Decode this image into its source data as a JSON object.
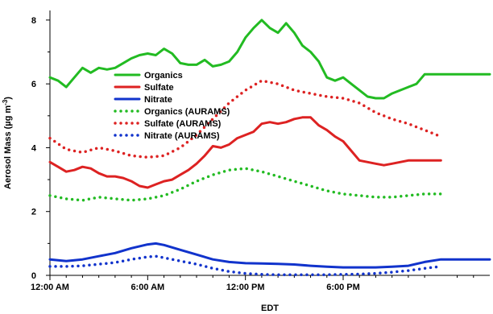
{
  "chart_data": {
    "type": "line",
    "xlabel": "EDT",
    "ylabel": "Aerosol Mass (µg m⁻³)",
    "ylabel_parts": {
      "main": "Aerosol Mass (µg m",
      "sup": "-3",
      "close": ")"
    },
    "xlim": [
      0,
      27
    ],
    "ylim": [
      0,
      8.3
    ],
    "x_ticks": [
      {
        "value": 0,
        "label": "12:00 AM"
      },
      {
        "value": 6,
        "label": "6:00 AM"
      },
      {
        "value": 12,
        "label": "12:00 PM"
      },
      {
        "value": 18,
        "label": "6:00 PM"
      }
    ],
    "y_ticks": [
      {
        "value": 0,
        "label": "0"
      },
      {
        "value": 2,
        "label": "2"
      },
      {
        "value": 4,
        "label": "4"
      },
      {
        "value": 6,
        "label": "6"
      },
      {
        "value": 8,
        "label": "8"
      }
    ],
    "legend_position": "upper-left",
    "series": [
      {
        "name": "Organics",
        "color": "#22bb22",
        "style": "solid",
        "x": [
          0,
          0.5,
          1,
          1.5,
          2,
          2.5,
          3,
          3.5,
          4,
          4.5,
          5,
          5.5,
          6,
          6.5,
          7,
          7.5,
          8,
          8.5,
          9,
          9.5,
          10,
          10.5,
          11,
          11.5,
          12,
          12.5,
          13,
          13.5,
          14,
          14.5,
          15,
          15.5,
          16,
          16.5,
          17,
          17.5,
          18,
          18.5,
          19,
          19.5,
          20,
          20.5,
          21,
          21.5,
          22,
          22.5,
          23,
          23.5,
          24,
          24.5,
          25,
          25.5,
          26,
          26.5,
          27
        ],
        "values": [
          6.2,
          6.1,
          5.9,
          6.2,
          6.5,
          6.35,
          6.5,
          6.45,
          6.5,
          6.65,
          6.8,
          6.9,
          6.95,
          6.9,
          7.1,
          6.95,
          6.65,
          6.6,
          6.6,
          6.75,
          6.55,
          6.6,
          6.7,
          7.0,
          7.45,
          7.75,
          8.0,
          7.75,
          7.6,
          7.9,
          7.6,
          7.2,
          7.0,
          6.7,
          6.2,
          6.1,
          6.2,
          6.0,
          5.8,
          5.6,
          5.55,
          5.55,
          5.7,
          5.8,
          5.9,
          6.0,
          6.3,
          6.3,
          6.3,
          6.3,
          6.3,
          6.3,
          6.3,
          6.3,
          6.3
        ]
      },
      {
        "name": "Sulfate",
        "color": "#dd2222",
        "style": "solid",
        "x": [
          0,
          0.5,
          1,
          1.5,
          2,
          2.5,
          3,
          3.5,
          4,
          4.5,
          5,
          5.5,
          6,
          6.5,
          7,
          7.5,
          8,
          8.5,
          9,
          9.5,
          10,
          10.5,
          11,
          11.5,
          12,
          12.5,
          13,
          13.5,
          14,
          14.5,
          15,
          15.5,
          16,
          16.5,
          17,
          17.5,
          18,
          18.5,
          19,
          19.5,
          20,
          20.5,
          21,
          21.5,
          22,
          22.5,
          23,
          23.5,
          24
        ],
        "values": [
          3.55,
          3.4,
          3.25,
          3.3,
          3.4,
          3.35,
          3.2,
          3.1,
          3.1,
          3.05,
          2.95,
          2.8,
          2.75,
          2.85,
          2.95,
          3.0,
          3.15,
          3.3,
          3.5,
          3.75,
          4.05,
          4.0,
          4.1,
          4.3,
          4.4,
          4.5,
          4.75,
          4.8,
          4.75,
          4.8,
          4.9,
          4.95,
          4.95,
          4.7,
          4.55,
          4.35,
          4.2,
          3.9,
          3.6,
          3.55,
          3.5,
          3.45,
          3.5,
          3.55,
          3.6,
          3.6,
          3.6,
          3.6,
          3.6
        ]
      },
      {
        "name": "Nitrate",
        "color": "#1133cc",
        "style": "solid",
        "x": [
          0,
          1,
          2,
          3,
          4,
          5,
          6,
          6.5,
          7,
          8,
          9,
          10,
          11,
          12,
          13,
          14,
          15,
          16,
          17,
          18,
          19,
          20,
          21,
          22,
          23,
          24,
          24.5,
          25,
          26,
          27
        ],
        "values": [
          0.5,
          0.45,
          0.5,
          0.6,
          0.7,
          0.85,
          0.97,
          1.0,
          0.95,
          0.8,
          0.65,
          0.5,
          0.42,
          0.38,
          0.37,
          0.36,
          0.34,
          0.3,
          0.27,
          0.25,
          0.25,
          0.25,
          0.27,
          0.3,
          0.42,
          0.5,
          0.5,
          0.5,
          0.5,
          0.5
        ]
      },
      {
        "name": "Organics (AURAMS)",
        "color": "#22bb22",
        "style": "dotted",
        "x": [
          0,
          1,
          2,
          3,
          4,
          5,
          6,
          7,
          8,
          9,
          10,
          11,
          12,
          12.5,
          13,
          14,
          15,
          16,
          17,
          18,
          19,
          20,
          21,
          22,
          23,
          24
        ],
        "values": [
          2.5,
          2.4,
          2.35,
          2.45,
          2.4,
          2.35,
          2.4,
          2.5,
          2.7,
          2.95,
          3.15,
          3.3,
          3.35,
          3.3,
          3.25,
          3.1,
          2.95,
          2.8,
          2.65,
          2.55,
          2.5,
          2.45,
          2.45,
          2.5,
          2.55,
          2.55
        ]
      },
      {
        "name": "Sulfate (AURAMS)",
        "color": "#dd2222",
        "style": "dotted",
        "x": [
          0,
          1,
          2,
          3,
          4,
          5,
          6,
          7,
          8,
          9,
          10,
          11,
          12,
          13,
          14,
          15,
          16,
          17,
          18,
          19,
          20,
          21,
          22,
          23,
          24
        ],
        "values": [
          4.3,
          3.95,
          3.85,
          4.0,
          3.9,
          3.75,
          3.7,
          3.75,
          4.0,
          4.4,
          4.9,
          5.4,
          5.8,
          6.1,
          6.0,
          5.8,
          5.7,
          5.6,
          5.55,
          5.4,
          5.1,
          4.9,
          4.75,
          4.55,
          4.35
        ]
      },
      {
        "name": "Nitrate (AURAMS)",
        "color": "#1133cc",
        "style": "dotted",
        "x": [
          0,
          1,
          2,
          3,
          4,
          5,
          6,
          6.5,
          7,
          8,
          9,
          10,
          11,
          12,
          13,
          14,
          15,
          16,
          17,
          18,
          19,
          20,
          21,
          22,
          23,
          24
        ],
        "values": [
          0.28,
          0.28,
          0.3,
          0.35,
          0.4,
          0.5,
          0.58,
          0.6,
          0.55,
          0.45,
          0.35,
          0.22,
          0.12,
          0.06,
          0.03,
          0.02,
          0.02,
          0.02,
          0.02,
          0.03,
          0.04,
          0.06,
          0.1,
          0.15,
          0.22,
          0.28
        ]
      }
    ]
  }
}
